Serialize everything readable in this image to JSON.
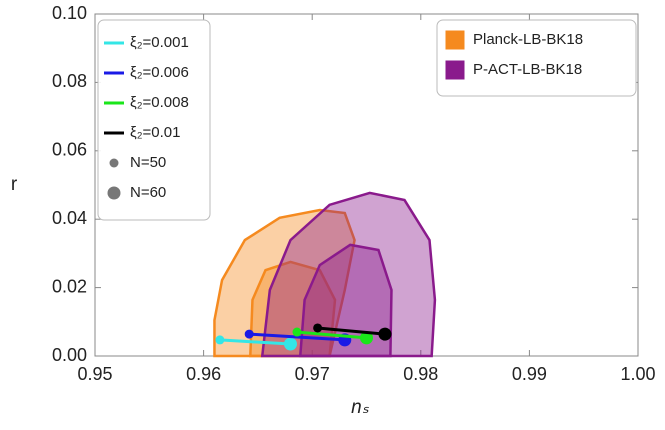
{
  "chart_data": {
    "type": "line",
    "xlabel": "nₛ",
    "ylabel": "r",
    "xlim": [
      0.95,
      1.0
    ],
    "ylim": [
      0,
      0.1
    ],
    "xticks": [
      0.95,
      0.96,
      0.97,
      0.98,
      0.99,
      {
        "value": 1.0,
        "label": "1.00"
      }
    ],
    "yticks": [
      {
        "value": 0,
        "label": "0.00"
      },
      0.02,
      0.04,
      0.06,
      0.08,
      {
        "value": 0.1,
        "label": "0.10"
      }
    ],
    "contours": [
      {
        "name": "Planck-LB-BK18",
        "color": "#f58a1f",
        "levels": [
          {
            "x": [
              0.961,
              0.961,
              0.9617,
              0.9638,
              0.967,
              0.9707,
              0.973,
              0.9739,
              0.973,
              0.9716
            ],
            "y": [
              0,
              0.0105,
              0.0222,
              0.0339,
              0.0404,
              0.0427,
              0.0418,
              0.0339,
              0.0193,
              0
            ]
          },
          {
            "x": [
              0.9643,
              0.9645,
              0.9657,
              0.968,
              0.9707,
              0.9721,
              0.9716
            ],
            "y": [
              0,
              0.0164,
              0.0251,
              0.0275,
              0.0251,
              0.0164,
              0
            ]
          }
        ]
      },
      {
        "name": "P-ACT-LB-BK18",
        "color": "#8a1a8c",
        "levels": [
          {
            "x": [
              0.9654,
              0.9661,
              0.968,
              0.9716,
              0.9753,
              0.9785,
              0.9808,
              0.9813,
              0.981
            ],
            "y": [
              0,
              0.0193,
              0.0339,
              0.0442,
              0.0477,
              0.0456,
              0.0339,
              0.0164,
              0
            ]
          },
          {
            "x": [
              0.9689,
              0.9693,
              0.9707,
              0.9735,
              0.9761,
              0.9773,
              0.9772
            ],
            "y": [
              0,
              0.0164,
              0.0266,
              0.0325,
              0.031,
              0.0193,
              0
            ]
          }
        ]
      }
    ],
    "size_legend": [
      "N=50",
      "N=60"
    ],
    "series": [
      {
        "name": "ξ₂=0.001",
        "color": "#33e6e6",
        "x": [
          0.9615,
          0.968
        ],
        "values": [
          0.0047,
          0.0035
        ]
      },
      {
        "name": "ξ₂=0.006",
        "color": "#1a1ae6",
        "x": [
          0.9642,
          0.973
        ],
        "values": [
          0.0064,
          0.0047
        ]
      },
      {
        "name": "ξ₂=0.008",
        "color": "#1ae61a",
        "x": [
          0.9686,
          0.975
        ],
        "values": [
          0.007,
          0.0053
        ]
      },
      {
        "name": "ξ₂=0.01",
        "color": "#000000",
        "x": [
          0.9705,
          0.9767
        ],
        "values": [
          0.0082,
          0.0064
        ]
      }
    ]
  }
}
